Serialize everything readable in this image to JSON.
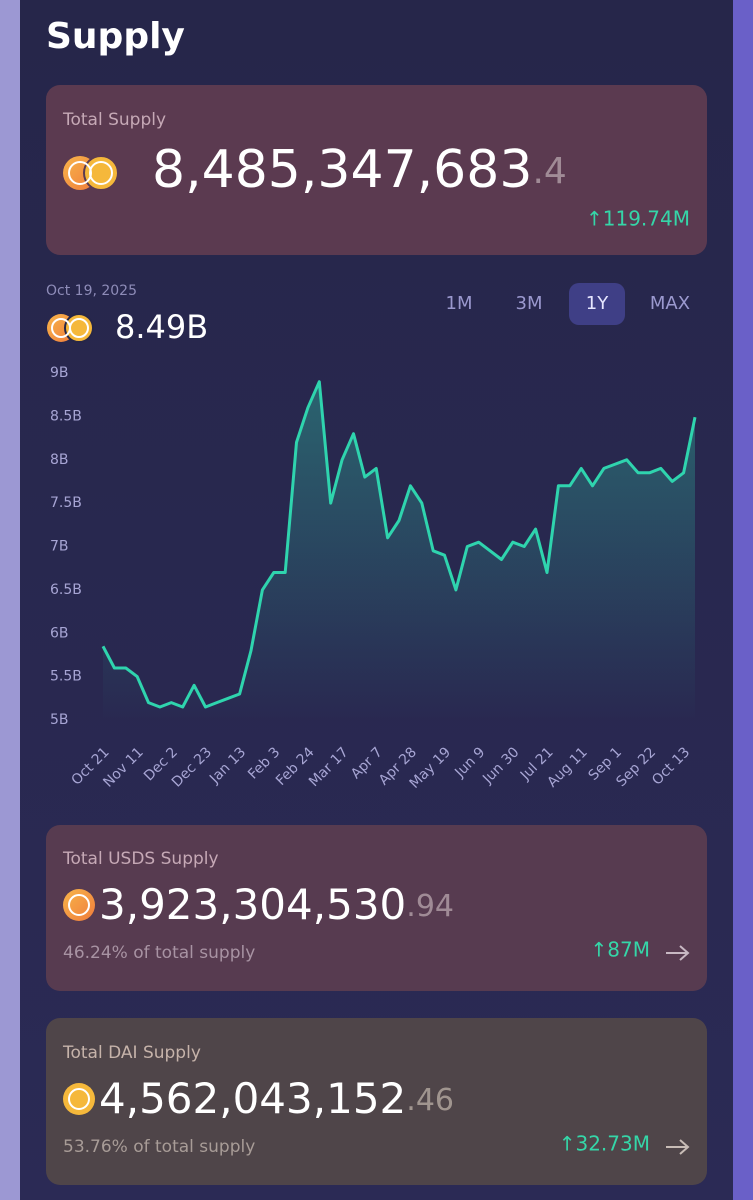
{
  "header": {
    "title": "Supply"
  },
  "total": {
    "label": "Total Supply",
    "integer": "8,485,347,683",
    "decimal": ".4",
    "change": "↑119.74M"
  },
  "chart": {
    "type": "line",
    "hover_date": "Oct 19, 2025",
    "hover_value": "8.49B",
    "ranges": [
      "1M",
      "3M",
      "1Y",
      "MAX"
    ],
    "selected_range": 2,
    "categories": [
      "Oct 21",
      null,
      null,
      "Nov 11",
      null,
      null,
      "Dec 2",
      null,
      null,
      "Dec 23",
      null,
      null,
      "Jan 13",
      null,
      null,
      "Feb 3",
      null,
      null,
      "Feb 24",
      null,
      null,
      "Mar 17",
      null,
      null,
      "Apr 7",
      null,
      null,
      "Apr 28",
      null,
      null,
      "May 19",
      null,
      null,
      "Jun 9",
      null,
      null,
      "Jun 30",
      null,
      null,
      "Jul 21",
      null,
      null,
      "Aug 11",
      null,
      null,
      "Sep 1",
      null,
      null,
      "Sep 22",
      null,
      null,
      "Oct 13",
      null
    ],
    "values": [
      5.85,
      5.6,
      5.6,
      5.5,
      5.2,
      5.15,
      5.2,
      5.15,
      5.4,
      5.15,
      5.2,
      5.25,
      5.3,
      5.8,
      6.5,
      6.7,
      6.7,
      8.2,
      8.6,
      8.9,
      7.5,
      8.0,
      8.3,
      7.8,
      7.9,
      7.1,
      7.3,
      7.7,
      7.5,
      6.95,
      6.9,
      6.5,
      7.0,
      7.05,
      6.95,
      6.85,
      7.05,
      7.0,
      7.2,
      6.7,
      7.7,
      7.7,
      7.9,
      7.7,
      7.9,
      7.95,
      8.0,
      7.85,
      7.85,
      7.9,
      7.75,
      7.85,
      8.49
    ],
    "ylim": [
      5,
      9
    ],
    "yticks": [
      {
        "value": 5,
        "label": "5B"
      },
      {
        "value": 5.5,
        "label": "5.5B"
      },
      {
        "value": 6,
        "label": "6B"
      },
      {
        "value": 6.5,
        "label": "6.5B"
      },
      {
        "value": 7,
        "label": "7B"
      },
      {
        "value": 7.5,
        "label": "7.5B"
      },
      {
        "value": 8,
        "label": "8B"
      },
      {
        "value": 8.5,
        "label": "8.5B"
      },
      {
        "value": 9,
        "label": "9B"
      }
    ],
    "color": "#2fd4ae"
  },
  "usds": {
    "label": "Total USDS Supply",
    "integer": "3,923,304,530",
    "decimal": ".94",
    "share": "46.24% of total supply",
    "change": "↑87M"
  },
  "dai": {
    "label": "Total DAI Supply",
    "integer": "4,562,043,152",
    "decimal": ".46",
    "share": "53.76% of total supply",
    "change": "↑32.73M"
  }
}
